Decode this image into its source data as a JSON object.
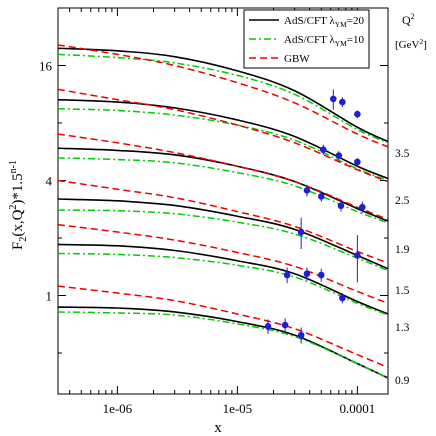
{
  "chart_data": {
    "type": "line",
    "xlabel": "x",
    "ylabel": "F",
    "ylabel_parts": {
      "main": "F",
      "sub": "2",
      "mid": "(x,Q",
      "sup": "2",
      "after": ")*1.5",
      "sup2": "n-1"
    },
    "x_scale": "log",
    "y_scale": "log",
    "xlim": [
      3.2e-07,
      0.00018
    ],
    "ylim": [
      0.305,
      32
    ],
    "x_ticks": [
      {
        "value": 1e-06,
        "label": "1e-06"
      },
      {
        "value": 1e-05,
        "label": "1e-05"
      },
      {
        "value": 0.0001,
        "label": "0.0001"
      }
    ],
    "y_ticks": [
      {
        "value": 1,
        "label": "1"
      },
      {
        "value": 4,
        "label": "4"
      },
      {
        "value": 16,
        "label": "16"
      }
    ],
    "grid": false,
    "legend": [
      {
        "label": "AdS/CFT λ",
        "sub": "YM",
        "value": "=20",
        "color": "#000000",
        "dash": "solid"
      },
      {
        "label": "AdS/CFT λ",
        "sub": "YM",
        "value": "=10",
        "color": "#00cc00",
        "dash": "dashdot"
      },
      {
        "label": "GBW",
        "color": "#ee0000",
        "dash": "dashed"
      }
    ],
    "q2_header": {
      "line1": "Q",
      "sup": "2",
      "line2": "[GeV",
      "sup2": "2",
      "close": "]"
    },
    "q2_labels": [
      "3.5",
      "2.5",
      "1.9",
      "1.5",
      "1.3",
      "0.9"
    ],
    "series": [
      {
        "name": "AdS/CFT λYM=20",
        "color": "#000000",
        "x": [
          3.2e-07,
          1e-06,
          3e-06,
          1e-05,
          3e-05,
          0.0001,
          0.00018
        ],
        "bands": [
          [
            19.7,
            19.1,
            17.8,
            15.0,
            11.8,
            7.6,
            6.4
          ],
          [
            10.6,
            10.3,
            9.6,
            8.3,
            6.8,
            4.75,
            4.1
          ],
          [
            5.9,
            5.75,
            5.45,
            4.75,
            3.95,
            2.85,
            2.45
          ],
          [
            3.2,
            3.13,
            2.96,
            2.6,
            2.22,
            1.62,
            1.38
          ],
          [
            1.85,
            1.82,
            1.72,
            1.52,
            1.3,
            0.93,
            0.8
          ],
          [
            0.87,
            0.86,
            0.82,
            0.73,
            0.62,
            0.44,
            0.37
          ]
        ]
      },
      {
        "name": "AdS/CFT λYM=10",
        "color": "#00cc00",
        "x": [
          3.2e-07,
          1e-06,
          3e-06,
          1e-05,
          3e-05,
          0.0001,
          0.00018
        ],
        "bands": [
          [
            18.3,
            17.6,
            16.5,
            14.2,
            11.3,
            7.4,
            6.3
          ],
          [
            9.5,
            9.3,
            8.8,
            7.8,
            6.5,
            4.6,
            4.0
          ],
          [
            5.25,
            5.15,
            4.95,
            4.4,
            3.75,
            2.75,
            2.4
          ],
          [
            2.8,
            2.78,
            2.68,
            2.42,
            2.1,
            1.57,
            1.35
          ],
          [
            1.66,
            1.64,
            1.58,
            1.44,
            1.25,
            0.91,
            0.79
          ],
          [
            0.82,
            0.81,
            0.79,
            0.71,
            0.61,
            0.44,
            0.37
          ]
        ]
      },
      {
        "name": "GBW",
        "color": "#ee0000",
        "x": [
          3.2e-07,
          1e-06,
          3e-06,
          1e-05,
          3e-05,
          0.0001,
          0.00018
        ],
        "bands": [
          [
            20.5,
            18.3,
            16.0,
            13.0,
            10.2,
            7.0,
            6.0
          ],
          [
            12.0,
            10.6,
            9.4,
            7.8,
            6.3,
            4.55,
            3.95
          ],
          [
            7.0,
            6.3,
            5.6,
            4.75,
            3.95,
            2.9,
            2.5
          ],
          [
            4.0,
            3.6,
            3.25,
            2.75,
            2.3,
            1.7,
            1.48
          ],
          [
            2.35,
            2.15,
            1.95,
            1.68,
            1.42,
            1.05,
            0.91
          ],
          [
            1.12,
            1.03,
            0.94,
            0.8,
            0.67,
            0.49,
            0.42
          ]
        ]
      }
    ],
    "data_points": [
      {
        "x": 6.3e-05,
        "y": 10.7,
        "err": 1.3
      },
      {
        "x": 7.5e-05,
        "y": 10.3,
        "err": 0.6
      },
      {
        "x": 0.0001,
        "y": 8.9,
        "err": 0.4
      },
      {
        "x": 5.2e-05,
        "y": 5.8,
        "err": 0.35
      },
      {
        "x": 7e-05,
        "y": 5.4,
        "err": 0.3
      },
      {
        "x": 0.0001,
        "y": 5.0,
        "err": 0.25
      },
      {
        "x": 3.8e-05,
        "y": 3.55,
        "err": 0.25
      },
      {
        "x": 5e-05,
        "y": 3.3,
        "err": 0.2
      },
      {
        "x": 7.3e-05,
        "y": 2.95,
        "err": 0.2
      },
      {
        "x": 0.00011,
        "y": 2.9,
        "err": 0.2
      },
      {
        "x": 3.4e-05,
        "y": 2.15,
        "err": 0.4
      },
      {
        "x": 0.0001,
        "y": 1.62,
        "err": 0.45
      },
      {
        "x": 2.6e-05,
        "y": 1.28,
        "err": 0.12
      },
      {
        "x": 3.8e-05,
        "y": 1.3,
        "err": 0.1
      },
      {
        "x": 5e-05,
        "y": 1.28,
        "err": 0.1
      },
      {
        "x": 7.5e-05,
        "y": 0.97,
        "err": 0.06
      },
      {
        "x": 1.8e-05,
        "y": 0.69,
        "err": 0.06
      },
      {
        "x": 2.5e-05,
        "y": 0.7,
        "err": 0.06
      },
      {
        "x": 3.4e-05,
        "y": 0.62,
        "err": 0.06
      }
    ]
  }
}
